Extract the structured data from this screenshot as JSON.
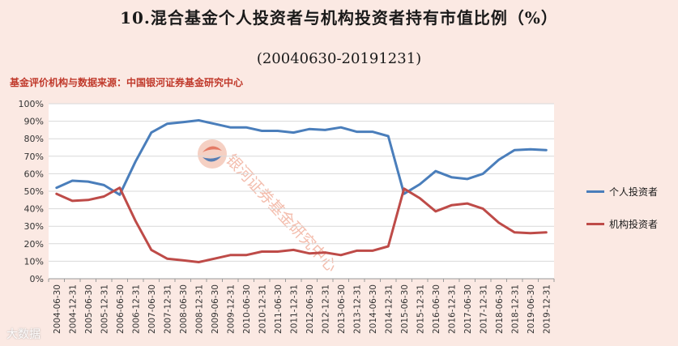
{
  "chart_data": {
    "type": "line",
    "title": "10.混合基金个人投资者与机构投资者持有市值比例（%）",
    "subtitle": "(20040630-20191231)",
    "source_note": "基金评价机构与数据来源：中国银河证券基金研究中心",
    "watermark_text": "银河证券基金研究中心",
    "yticks": [
      "0%",
      "10%",
      "20%",
      "30%",
      "40%",
      "50%",
      "60%",
      "70%",
      "80%",
      "90%",
      "100%"
    ],
    "ylim": [
      0,
      100
    ],
    "grid": true,
    "legend_position": "right",
    "categories": [
      "2004-06-30",
      "2004-12-31",
      "2005-06-30",
      "2005-12-31",
      "2006-06-30",
      "2006-12-31",
      "2007-06-30",
      "2007-12-31",
      "2008-06-30",
      "2008-12-31",
      "2009-06-30",
      "2009-12-31",
      "2010-06-30",
      "2010-12-31",
      "2011-06-30",
      "2011-12-31",
      "2012-06-30",
      "2012-12-31",
      "2013-06-30",
      "2013-12-31",
      "2014-06-30",
      "2014-12-31",
      "2015-06-30",
      "2015-12-31",
      "2016-06-30",
      "2016-12-31",
      "2017-06-30",
      "2017-12-31",
      "2018-06-30",
      "2018-12-31",
      "2019-06-30",
      "2019-12-31"
    ],
    "series": [
      {
        "name": "个人投资者",
        "color": "#4a7ebb",
        "values": [
          52,
          56,
          55.5,
          53.5,
          48,
          67,
          83.5,
          88.5,
          89.5,
          90.5,
          88.5,
          86.5,
          86.5,
          84.5,
          84.5,
          83.5,
          85.5,
          85,
          86.5,
          84,
          84,
          81.5,
          48.5,
          54,
          61.5,
          58,
          57,
          60,
          68,
          73.5,
          74,
          73.5
        ]
      },
      {
        "name": "机构投资者",
        "color": "#be4b48",
        "values": [
          48.5,
          44.5,
          45,
          47,
          52,
          33,
          16.5,
          11.5,
          10.5,
          9.5,
          11.5,
          13.5,
          13.5,
          15.5,
          15.5,
          16.5,
          14.5,
          15,
          13.5,
          16,
          16,
          18.5,
          51.5,
          46,
          38.5,
          42,
          43,
          40,
          32,
          26.5,
          26,
          26.5
        ]
      }
    ]
  },
  "watermark": "大数据"
}
